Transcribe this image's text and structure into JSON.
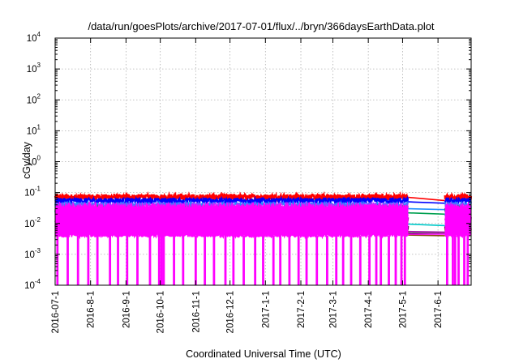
{
  "chart_data": {
    "type": "line",
    "title": "/data/run/goesPlots/archive/2017-07-01/flux/../bryn/366daysEarthData.plot",
    "xlabel": "Coordinated Universal Time (UTC)",
    "ylabel": "cGy/day",
    "y_scale": "log",
    "ylim": [
      0.0001,
      10000
    ],
    "y_ticks": [
      {
        "value": 0.0001,
        "base": "10",
        "exp": "-4"
      },
      {
        "value": 0.001,
        "base": "10",
        "exp": "-3"
      },
      {
        "value": 0.01,
        "base": "10",
        "exp": "-2"
      },
      {
        "value": 0.1,
        "base": "10",
        "exp": "-1"
      },
      {
        "value": 1,
        "base": "10",
        "exp": "0"
      },
      {
        "value": 10,
        "base": "10",
        "exp": "1"
      },
      {
        "value": 100,
        "base": "10",
        "exp": "2"
      },
      {
        "value": 1000,
        "base": "10",
        "exp": "3"
      },
      {
        "value": 10000,
        "base": "10",
        "exp": "4"
      }
    ],
    "xlim": [
      "2016-07-01",
      "2017-06-30"
    ],
    "x_ticks": [
      "2016-07-1",
      "2016-8-1",
      "2016-9-1",
      "2016-10-1",
      "2016-11-1",
      "2016-12-1",
      "2017-1-1",
      "2017-2-1",
      "2017-3-1",
      "2017-4-1",
      "2017-5-1",
      "2017-6-1"
    ],
    "x_tick_dates": [
      "2016-07-01",
      "2016-08-01",
      "2016-09-01",
      "2016-10-01",
      "2016-11-01",
      "2016-12-01",
      "2017-01-01",
      "2017-02-01",
      "2017-03-01",
      "2017-04-01",
      "2017-05-01",
      "2017-06-01"
    ],
    "grid": true,
    "data_gap": [
      "2017-05-06",
      "2017-06-07"
    ],
    "series": [
      {
        "color": "#ff0000",
        "level": 0.072,
        "gap_start": 0.07,
        "gap_end": 0.055
      },
      {
        "color": "#0000ff",
        "level": 0.055,
        "gap_start": 0.05,
        "gap_end": 0.045
      },
      {
        "color": "#1e90ff",
        "level": 0.04,
        "gap_start": 0.03,
        "gap_end": 0.028
      },
      {
        "color": "#00a050",
        "level": 0.03,
        "gap_start": 0.022,
        "gap_end": 0.02
      },
      {
        "color": "#00c8c8",
        "level": 0.022,
        "gap_start": 0.0095,
        "gap_end": 0.0085
      },
      {
        "color": "#a000a0",
        "level": 0.014,
        "gap_start": 0.0055,
        "gap_end": 0.0052
      },
      {
        "color": "#000000",
        "level": 0.008,
        "gap_start": 0.0048,
        "gap_end": 0.0046
      },
      {
        "color": "#8b4513",
        "level": 0.006,
        "gap_start": 0.0042,
        "gap_end": 0.004
      },
      {
        "color": "#ff00ff",
        "level": 0.004,
        "gap_start": 0.0045,
        "gap_end": 0.0045
      }
    ],
    "dropout_dates": [
      "2016-07-03",
      "2016-07-12",
      "2016-07-21",
      "2016-07-30",
      "2016-08-07",
      "2016-08-18",
      "2016-08-25",
      "2016-09-02",
      "2016-09-11",
      "2016-09-22",
      "2016-09-30",
      "2016-10-02",
      "2016-10-04",
      "2016-10-13",
      "2016-10-21",
      "2016-11-01",
      "2016-11-09",
      "2016-11-17",
      "2016-11-27",
      "2016-12-04",
      "2016-12-13",
      "2016-12-23",
      "2016-12-30",
      "2017-01-08",
      "2017-01-14",
      "2017-01-22",
      "2017-01-30",
      "2017-02-06",
      "2017-02-15",
      "2017-02-24",
      "2017-03-04",
      "2017-03-10",
      "2017-03-17",
      "2017-03-25",
      "2017-04-02",
      "2017-04-08",
      "2017-04-12",
      "2017-04-19",
      "2017-04-25",
      "2017-04-30",
      "2017-05-03",
      "2017-06-09",
      "2017-06-14",
      "2017-06-16",
      "2017-06-19",
      "2017-06-24",
      "2017-06-27"
    ]
  }
}
